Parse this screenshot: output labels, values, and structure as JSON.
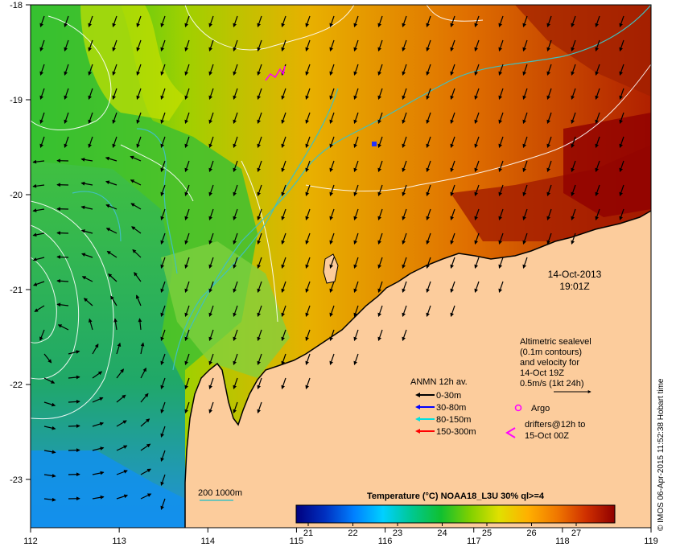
{
  "map": {
    "lon_ticks": [
      "112",
      "113",
      "114",
      "115",
      "116",
      "117",
      "118",
      "119"
    ],
    "lat_ticks": [
      "-18",
      "-19",
      "-20",
      "-21",
      "-22",
      "-23"
    ],
    "date_line1": "14-Oct-2013",
    "date_line2": "19:01Z"
  },
  "altimetry_note": {
    "line1": "Altimetric sealevel",
    "line2": "(0.1m contours)",
    "line3": "and velocity for",
    "line4": "14-Oct 19Z",
    "line5": "0.5m/s (1kt 24h)"
  },
  "anmn_legend": {
    "title": "ANMN 12h av.",
    "items": [
      {
        "label": "0-30m",
        "color": "#000000"
      },
      {
        "label": "30-80m",
        "color": "#0000ff"
      },
      {
        "label": "80-150m",
        "color": "#00e0e0"
      },
      {
        "label": "150-300m",
        "color": "#ff0000"
      }
    ]
  },
  "argo": {
    "label": "Argo",
    "color": "#ff00ff"
  },
  "drifters": {
    "line1": "drifters@12h to",
    "line2": "15-Oct 00Z",
    "color": "#ff00ff"
  },
  "isobath": {
    "label": "200  1000m",
    "color": "#40c0c0"
  },
  "colorbar": {
    "title": "Temperature (°C) NOAA18_L3U 30% ql>=4",
    "ticks": [
      "21",
      "22",
      "23",
      "24",
      "25",
      "26",
      "27"
    ],
    "colors": [
      "#00007f",
      "#0030c0",
      "#0080ff",
      "#00d0ff",
      "#00c890",
      "#10c030",
      "#80d000",
      "#e0e000",
      "#ffb000",
      "#f07800",
      "#d03000",
      "#900000"
    ]
  },
  "credit": "© IMOS 06-Apr-2015 11:52:38 Hobart time",
  "colors": {
    "land": "#fccc9c",
    "frame": "#000000"
  }
}
